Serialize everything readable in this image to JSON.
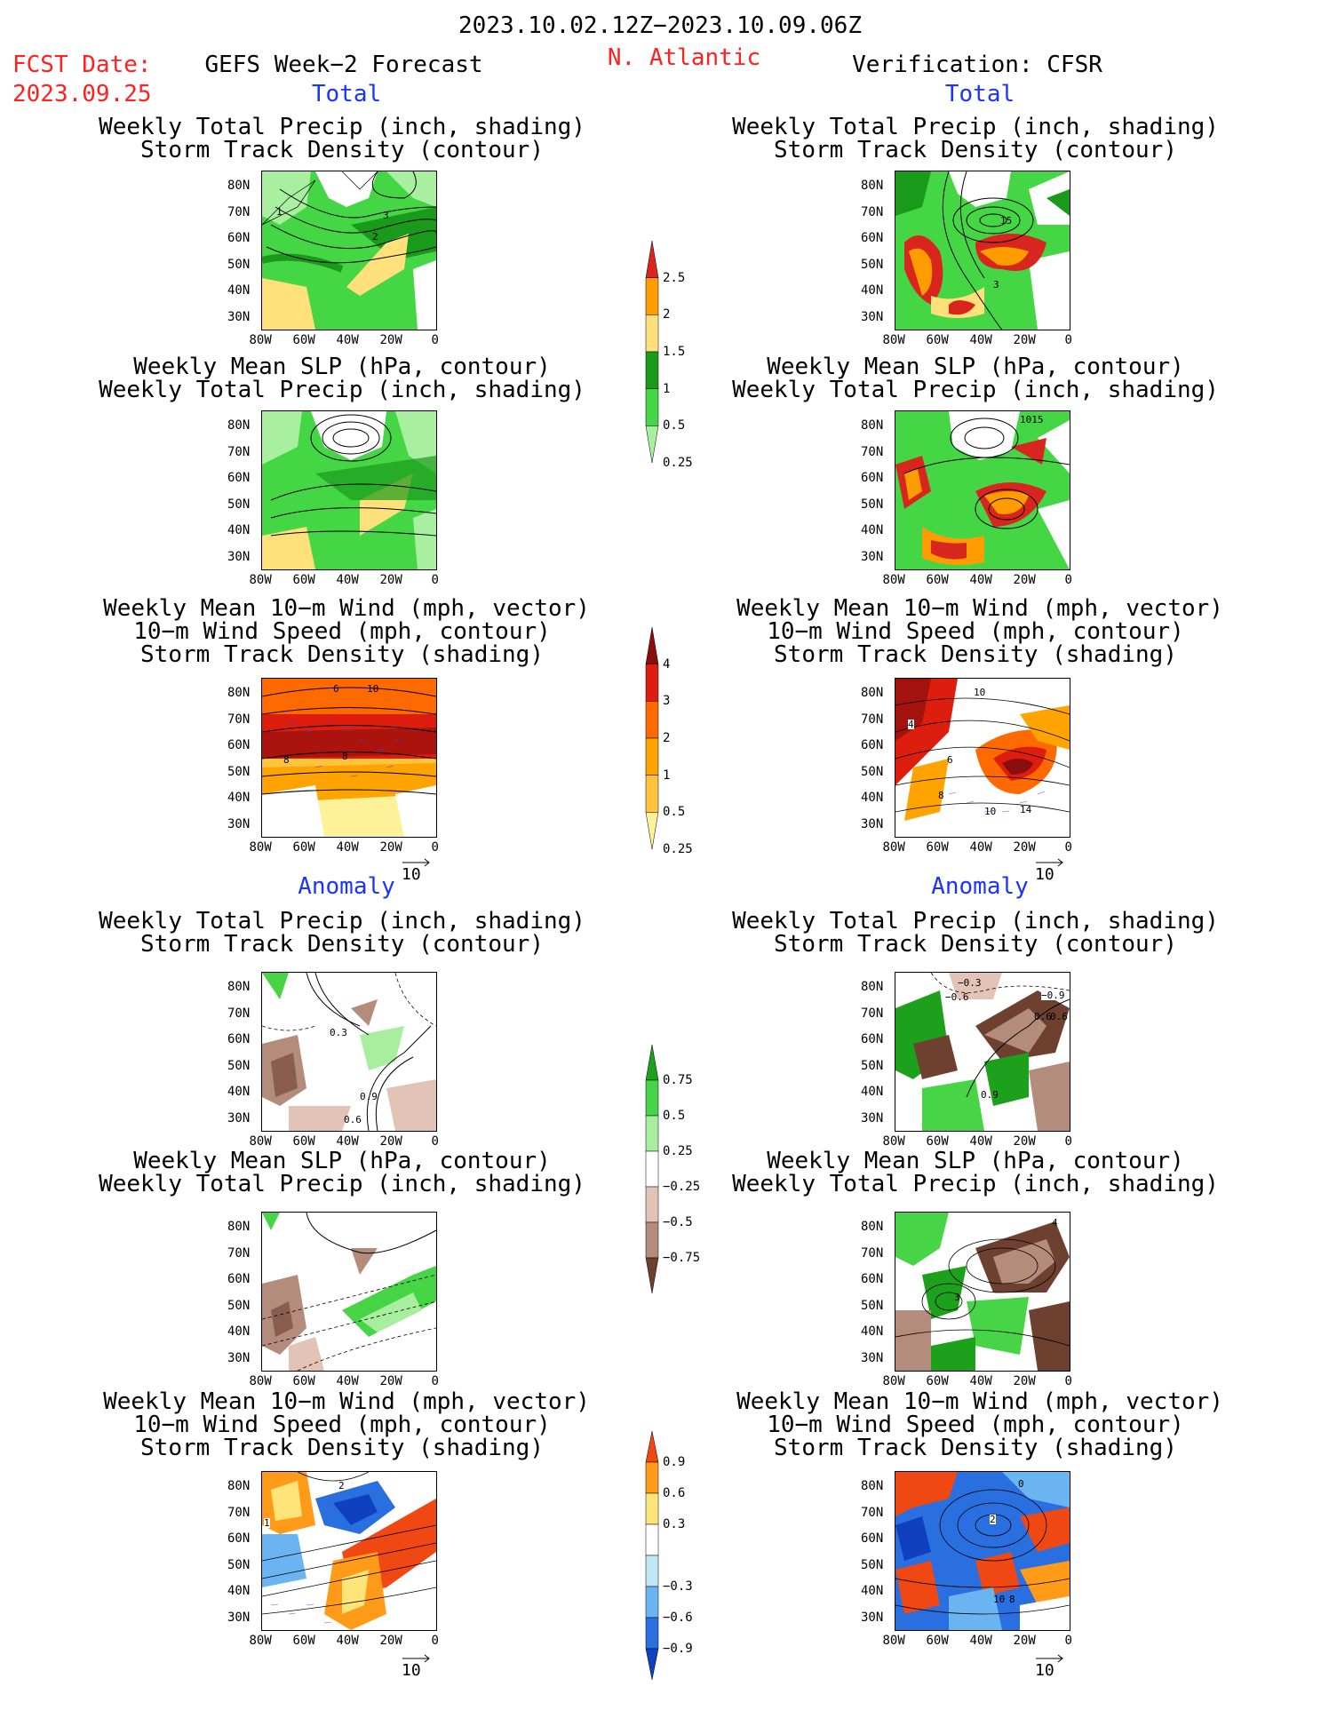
{
  "header": {
    "date_range": "2023.10.02.12Z−2023.10.09.06Z",
    "fcst_label": "FCST Date:",
    "fcst_date": "2023.09.25",
    "left_title": "GEFS Week−2 Forecast",
    "region": "N. Atlantic",
    "right_title": "Verification: CFSR",
    "section_total": "Total",
    "section_anomaly": "Anomaly"
  },
  "panel_titles": {
    "precip_track": [
      "Weekly Total Precip (inch, shading)",
      "Storm Track Density (contour)"
    ],
    "slp_precip": [
      "Weekly Mean SLP (hPa, contour)",
      "Weekly Total Precip (inch, shading)"
    ],
    "wind_track": [
      "Weekly Mean 10−m Wind (mph, vector)",
      "10−m Wind Speed (mph, contour)",
      "Storm Track Density (shading)"
    ]
  },
  "axes": {
    "lat_ticks": [
      "80N",
      "70N",
      "60N",
      "50N",
      "40N",
      "30N"
    ],
    "lon_ticks": [
      "80W",
      "60W",
      "40W",
      "20W",
      "0"
    ]
  },
  "vector_ref": "10",
  "colorbars": {
    "precip_total": {
      "labels": [
        "2.5",
        "2",
        "1.5",
        "1",
        "0.5",
        "0.25"
      ],
      "colors": [
        "#d8261e",
        "#ff9d00",
        "#ffe07a",
        "#1a9a1a",
        "#45d645",
        "#a8f0a0"
      ]
    },
    "track_total": {
      "labels": [
        "4",
        "3",
        "2",
        "1",
        "0.5",
        "0.25"
      ],
      "colors": [
        "#8b0d0d",
        "#dd1e0e",
        "#ff6a00",
        "#ffa300",
        "#ffc33d",
        "#fff09a"
      ]
    },
    "precip_anom": {
      "labels": [
        "0.75",
        "0.5",
        "0.25",
        "−0.25",
        "−0.5",
        "−0.75"
      ],
      "colors": [
        "#1da11d",
        "#47d447",
        "#a7ef9f",
        "#ffffff",
        "#e4c3b7",
        "#b48c7c",
        "#6e4030"
      ]
    },
    "track_anom": {
      "labels": [
        "0.9",
        "0.6",
        "0.3",
        "−0.3",
        "−0.6",
        "−0.9"
      ],
      "colors": [
        "#f04812",
        "#ff9b18",
        "#ffe47a",
        "#ffffff",
        "#bfe7f6",
        "#6ab4f2",
        "#2a6fe0",
        "#1040c0"
      ]
    }
  },
  "panel_labels": {
    "fcst_precip_total": [
      "1",
      "3",
      "2"
    ],
    "obs_precip_total": [
      "15",
      "3"
    ],
    "obs_slp_total": [
      "1015"
    ],
    "fcst_wind_total": [
      "6",
      "10",
      "8",
      "8"
    ],
    "obs_wind_total": [
      "10",
      "4",
      "6",
      "8",
      "10",
      "14"
    ],
    "fcst_precip_anom": [
      "0.3",
      "0.9",
      "0.6"
    ],
    "obs_precip_anom": [
      "−0.3",
      "−0.6",
      "−0.9",
      "0.6",
      "0.6",
      "0.9"
    ],
    "obs_slp_anom": [
      "3",
      "4"
    ],
    "fcst_wind_anom": [
      "2",
      "1"
    ],
    "obs_wind_anom": [
      "0",
      "2",
      "10",
      "8"
    ]
  }
}
